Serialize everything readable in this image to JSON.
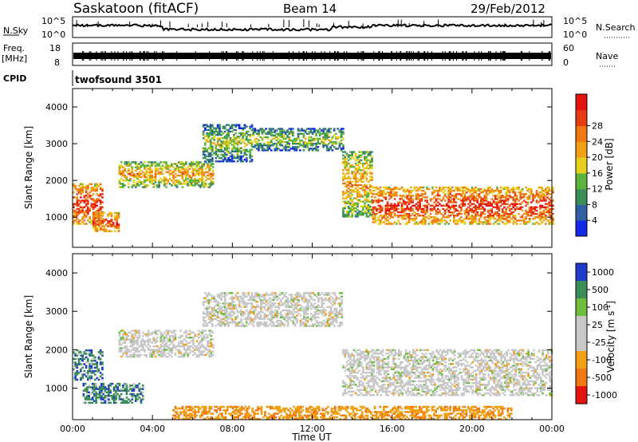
{
  "header": {
    "station": "Saskatoon (fitACF)",
    "beam": "Beam 14",
    "date": "29/Feb/2012"
  },
  "noise_panel": {
    "left_label": "N.Sky",
    "left_ticks": [
      "10^5",
      "10^0"
    ],
    "right_ticks": [
      "10^5",
      "10^0"
    ],
    "right_label": "N.Search"
  },
  "freq_panel": {
    "left_label_1": "Freq.",
    "left_label_2": "[MHz]",
    "left_ticks": [
      "18",
      "8"
    ],
    "right_ticks": [
      "60",
      "0"
    ],
    "right_label": "Nave"
  },
  "cpid": {
    "label": "CPID",
    "program": "twofsound 3501"
  },
  "chart_data": [
    {
      "type": "heatmap",
      "name": "power",
      "ylabel": "Slant Range [km]",
      "yticks": [
        "1000",
        "2000",
        "3000",
        "4000"
      ],
      "ylim": [
        180,
        4500
      ],
      "xlim_hours": [
        0,
        24
      ],
      "colorbar_label": "Power [dB]",
      "colorbar_ticks": [
        "4",
        "8",
        "12",
        "16",
        "20",
        "24",
        "28"
      ],
      "colorbar_colors": [
        "#1428e6",
        "#2f5fa5",
        "#3c8c5a",
        "#5cb43c",
        "#e6d21e",
        "#f0a014",
        "#f07814",
        "#e63c14",
        "#e6140f"
      ],
      "echo_bands": [
        {
          "t_start": 0.0,
          "t_end": 1.5,
          "range_low": 800,
          "range_high": 1900,
          "power": "high"
        },
        {
          "t_start": 1.0,
          "t_end": 2.3,
          "range_low": 600,
          "range_high": 1100,
          "power": "high"
        },
        {
          "t_start": 2.3,
          "t_end": 7.0,
          "range_low": 1800,
          "range_high": 2500,
          "power": "medium"
        },
        {
          "t_start": 6.5,
          "t_end": 9.0,
          "range_low": 2500,
          "range_high": 3500,
          "power": "low"
        },
        {
          "t_start": 9.0,
          "t_end": 13.5,
          "range_low": 2800,
          "range_high": 3400,
          "power": "low"
        },
        {
          "t_start": 13.5,
          "t_end": 15.0,
          "range_low": 1000,
          "range_high": 2800,
          "power": "medium"
        },
        {
          "t_start": 15.0,
          "t_end": 24.0,
          "range_low": 800,
          "range_high": 1800,
          "power": "high"
        }
      ]
    },
    {
      "type": "heatmap",
      "name": "velocity",
      "ylabel": "Slant Range [km]",
      "yticks": [
        "1000",
        "2000",
        "3000",
        "4000"
      ],
      "ylim": [
        180,
        4500
      ],
      "xlim_hours": [
        0,
        24
      ],
      "xticks": [
        "00:00",
        "04:00",
        "08:00",
        "12:00",
        "16:00",
        "20:00",
        "00:00"
      ],
      "xlabel": "Time UT",
      "colorbar_label": "Velocity [m s-1]",
      "colorbar_ticks": [
        "1000",
        "500",
        "100",
        "25",
        "-25",
        "-100",
        "-500",
        "-1000"
      ],
      "colorbar_colors": [
        "#1e3cc8",
        "#3c8c5a",
        "#6cbe3c",
        "#c8c8c8",
        "#c8c8c8",
        "#f0a014",
        "#f07814",
        "#e6140f"
      ],
      "echo_bands": [
        {
          "t_start": 0.0,
          "t_end": 1.5,
          "range_low": 1200,
          "range_high": 2000,
          "velocity": "positive"
        },
        {
          "t_start": 0.5,
          "t_end": 3.5,
          "range_low": 600,
          "range_high": 1100,
          "velocity": "positive"
        },
        {
          "t_start": 2.3,
          "t_end": 7.0,
          "range_low": 1800,
          "range_high": 2500,
          "velocity": "near-zero"
        },
        {
          "t_start": 6.5,
          "t_end": 13.5,
          "range_low": 2600,
          "range_high": 3500,
          "velocity": "near-zero"
        },
        {
          "t_start": 13.5,
          "t_end": 24.0,
          "range_low": 800,
          "range_high": 2000,
          "velocity": "near-zero"
        },
        {
          "t_start": 5.0,
          "t_end": 22.0,
          "range_low": 180,
          "range_high": 500,
          "velocity": "negative"
        }
      ]
    }
  ]
}
